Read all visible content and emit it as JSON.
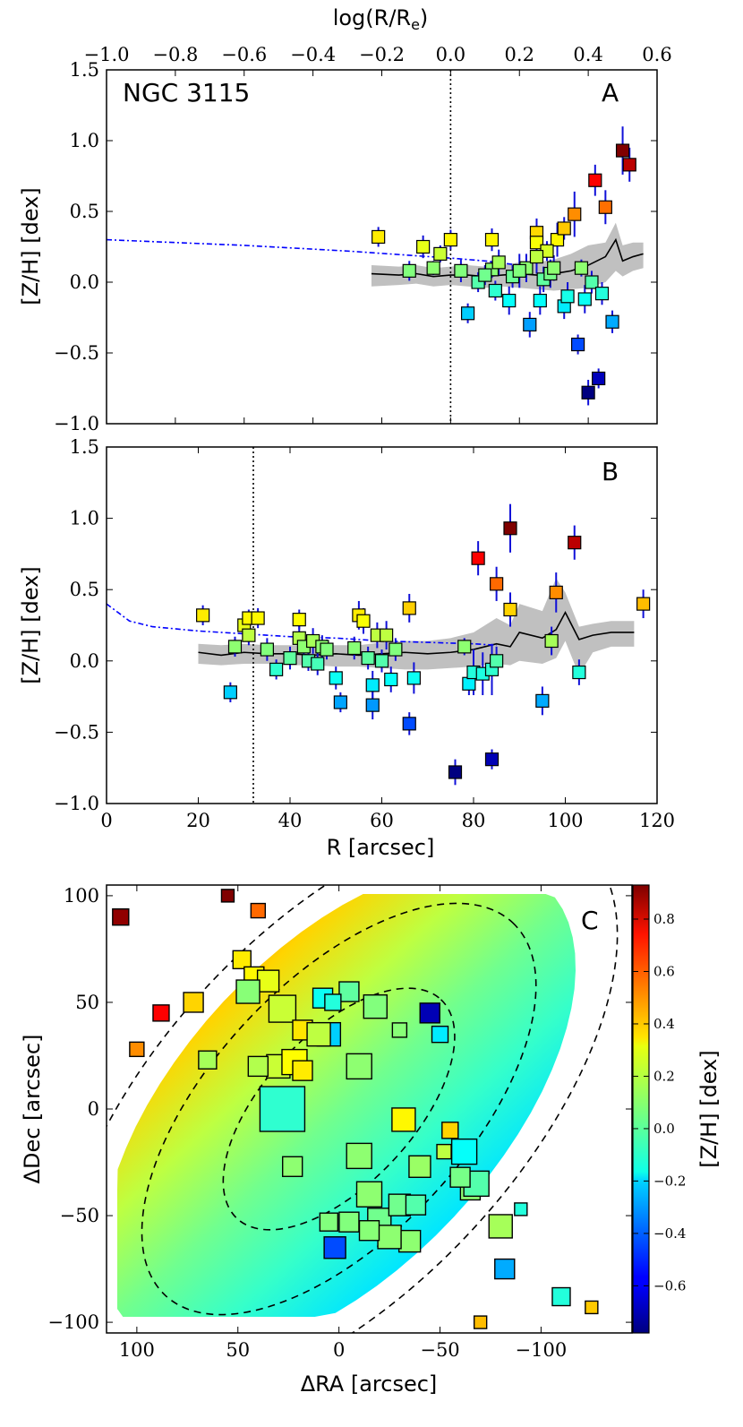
{
  "chart_data": [
    {
      "panel": "A",
      "type": "scatter",
      "title": "NGC 3115",
      "panel_label": "A",
      "xlabel": "log(R/R_e)",
      "xlabel_top_main": "log(R/R",
      "xlabel_top_sub": "e",
      "xlabel_top_close": ")",
      "ylabel": "[Z/H] [dex]",
      "xlim": [
        -1.0,
        0.6
      ],
      "ylim": [
        -1.0,
        1.5
      ],
      "xticks": [
        -1.0,
        -0.8,
        -0.6,
        -0.4,
        -0.2,
        0.0,
        0.2,
        0.4,
        0.6
      ],
      "xtick_labels": [
        "−1.0",
        "−0.8",
        "−0.6",
        "−0.4",
        "−0.2",
        "0.0",
        "0.2",
        "0.4",
        "0.6"
      ],
      "yticks": [
        -1.0,
        -0.5,
        0.0,
        0.5,
        1.0,
        1.5
      ],
      "ytick_labels": [
        "−1.0",
        "−0.5",
        "0.0",
        "0.5",
        "1.0",
        "1.5"
      ],
      "vline_x": 0.0,
      "points_x": [
        -0.21,
        0.12,
        -0.08,
        -0.03,
        0.0,
        -0.05,
        0.03,
        0.12,
        -0.12,
        0.25,
        0.31,
        0.33,
        0.25,
        0.28,
        0.38,
        0.42,
        0.45,
        0.5,
        0.52,
        0.4,
        0.43,
        0.47,
        0.13,
        0.17,
        0.18,
        0.22,
        0.25,
        0.27,
        0.29,
        0.33,
        0.34,
        0.37,
        0.39,
        0.41,
        0.08,
        0.05,
        0.1,
        0.14,
        0.2,
        0.23,
        0.26,
        0.3,
        0.36,
        0.44
      ],
      "points_y": [
        0.32,
        0.3,
        0.25,
        0.2,
        0.3,
        0.1,
        0.08,
        0.09,
        0.08,
        0.35,
        0.3,
        0.38,
        0.28,
        0.22,
        0.1,
        0.72,
        0.53,
        0.93,
        0.83,
        -0.78,
        -0.68,
        -0.28,
        -0.06,
        -0.13,
        0.04,
        0.1,
        0.18,
        0.02,
        0.06,
        -0.17,
        -0.1,
        -0.44,
        -0.12,
        0.0,
        0.0,
        -0.22,
        0.05,
        0.14,
        0.08,
        -0.3,
        -0.13,
        0.1,
        0.48,
        -0.08
      ],
      "err_y": [
        0.07,
        0.08,
        0.08,
        0.06,
        0.07,
        0.05,
        0.08,
        0.06,
        0.07,
        0.1,
        0.12,
        0.08,
        0.08,
        0.07,
        0.06,
        0.11,
        0.12,
        0.17,
        0.12,
        0.09,
        0.07,
        0.08,
        0.07,
        0.1,
        0.08,
        0.1,
        0.12,
        0.09,
        0.1,
        0.09,
        0.1,
        0.07,
        0.1,
        0.08,
        0.07,
        0.07,
        0.07,
        0.09,
        0.12,
        0.09,
        0.1,
        0.09,
        0.16,
        0.08
      ],
      "model_x": [
        -1.0,
        -0.6,
        -0.3,
        0.0,
        0.1,
        0.2
      ],
      "model_y": [
        0.3,
        0.26,
        0.22,
        0.17,
        0.15,
        0.12
      ],
      "profile_x": [
        -0.23,
        -0.15,
        -0.1,
        -0.05,
        0.0,
        0.05,
        0.1,
        0.15,
        0.2,
        0.25,
        0.3,
        0.35,
        0.4,
        0.45,
        0.48,
        0.5,
        0.53,
        0.56
      ],
      "profile_y": [
        0.06,
        0.05,
        0.06,
        0.04,
        0.05,
        0.05,
        0.04,
        0.05,
        0.06,
        0.05,
        0.06,
        0.08,
        0.12,
        0.18,
        0.3,
        0.15,
        0.18,
        0.2
      ],
      "band_upper": [
        0.12,
        0.11,
        0.12,
        0.1,
        0.11,
        0.12,
        0.11,
        0.12,
        0.14,
        0.14,
        0.16,
        0.2,
        0.26,
        0.28,
        0.42,
        0.26,
        0.28,
        0.28
      ],
      "band_lower": [
        -0.03,
        -0.02,
        -0.01,
        -0.03,
        -0.02,
        -0.03,
        -0.04,
        -0.03,
        -0.04,
        -0.05,
        -0.06,
        -0.05,
        -0.04,
        0.0,
        0.08,
        0.04,
        0.08,
        0.1
      ]
    },
    {
      "panel": "B",
      "type": "scatter",
      "panel_label": "B",
      "xlabel": "R [arcsec]",
      "ylabel": "[Z/H] [dex]",
      "xlim": [
        0,
        120
      ],
      "ylim": [
        -1.0,
        1.5
      ],
      "xticks": [
        0,
        20,
        40,
        60,
        80,
        100,
        120
      ],
      "xtick_labels": [
        "0",
        "20",
        "40",
        "60",
        "80",
        "100",
        "120"
      ],
      "yticks": [
        -1.0,
        -0.5,
        0.0,
        0.5,
        1.0,
        1.5
      ],
      "ytick_labels": [
        "−1.0",
        "−0.5",
        "0.0",
        "0.5",
        "1.0",
        "1.5"
      ],
      "vline_x": 32,
      "points_x": [
        21,
        27,
        28,
        30,
        31,
        31,
        33,
        35,
        37,
        40,
        42,
        42,
        43,
        44,
        45,
        46,
        47,
        48,
        50,
        51,
        54,
        55,
        56,
        57,
        58,
        58,
        59,
        60,
        61,
        62,
        63,
        66,
        66,
        67,
        76,
        78,
        79,
        80,
        81,
        82,
        84,
        84,
        85,
        85,
        88,
        88,
        95,
        97,
        98,
        102,
        103,
        117
      ],
      "points_y": [
        0.32,
        -0.22,
        0.1,
        0.25,
        0.18,
        0.3,
        0.3,
        0.08,
        -0.06,
        0.02,
        0.29,
        0.16,
        0.1,
        0.0,
        0.14,
        -0.02,
        0.1,
        0.08,
        -0.12,
        -0.29,
        0.09,
        0.32,
        0.28,
        0.02,
        -0.17,
        -0.31,
        0.18,
        0.0,
        0.18,
        -0.13,
        0.08,
        -0.44,
        0.37,
        -0.12,
        -0.78,
        0.1,
        -0.16,
        -0.08,
        0.72,
        -0.09,
        -0.06,
        -0.69,
        0.54,
        0.0,
        0.93,
        0.36,
        -0.28,
        0.14,
        0.48,
        0.83,
        -0.08,
        0.4
      ],
      "err_y": [
        0.07,
        0.07,
        0.07,
        0.08,
        0.07,
        0.06,
        0.07,
        0.08,
        0.07,
        0.08,
        0.07,
        0.1,
        0.08,
        0.07,
        0.09,
        0.08,
        0.08,
        0.07,
        0.08,
        0.07,
        0.08,
        0.1,
        0.09,
        0.08,
        0.1,
        0.1,
        0.09,
        0.08,
        0.1,
        0.09,
        0.08,
        0.08,
        0.1,
        0.11,
        0.09,
        0.06,
        0.08,
        0.16,
        0.12,
        0.15,
        0.18,
        0.07,
        0.12,
        0.1,
        0.17,
        0.12,
        0.1,
        0.1,
        0.14,
        0.12,
        0.09,
        0.1
      ],
      "model_x": [
        0,
        5,
        10,
        20,
        30,
        40,
        50,
        60,
        70,
        80,
        85
      ],
      "model_y": [
        0.4,
        0.28,
        0.24,
        0.21,
        0.19,
        0.17,
        0.16,
        0.14,
        0.13,
        0.12,
        0.11
      ],
      "profile_x": [
        20,
        25,
        30,
        35,
        40,
        45,
        50,
        55,
        60,
        65,
        70,
        75,
        80,
        85,
        88,
        90,
        95,
        98,
        100,
        103,
        106,
        110,
        115
      ],
      "profile_y": [
        0.06,
        0.04,
        0.06,
        0.05,
        0.05,
        0.04,
        0.05,
        0.04,
        0.05,
        0.06,
        0.05,
        0.06,
        0.08,
        0.12,
        0.1,
        0.2,
        0.16,
        0.22,
        0.34,
        0.15,
        0.18,
        0.2,
        0.2
      ],
      "band_upper": [
        0.12,
        0.11,
        0.12,
        0.11,
        0.11,
        0.11,
        0.11,
        0.11,
        0.13,
        0.14,
        0.14,
        0.16,
        0.2,
        0.3,
        0.25,
        0.4,
        0.35,
        0.58,
        0.48,
        0.24,
        0.26,
        0.28,
        0.28
      ],
      "band_lower": [
        -0.02,
        -0.03,
        -0.02,
        -0.02,
        -0.03,
        -0.03,
        -0.04,
        -0.04,
        -0.05,
        -0.06,
        -0.06,
        -0.05,
        -0.04,
        -0.02,
        -0.03,
        0.0,
        -0.02,
        0.02,
        0.14,
        -0.1,
        0.06,
        0.1,
        0.1
      ]
    },
    {
      "panel": "C",
      "type": "heatmap",
      "panel_label": "C",
      "xlabel": "ΔRA [arcsec]",
      "ylabel": "ΔDec [arcsec]",
      "colorbar_label": "[Z/H] [dex]",
      "xlim": [
        115,
        -145
      ],
      "ylim": [
        -105,
        105
      ],
      "xticks": [
        100,
        50,
        0,
        -50,
        -100
      ],
      "xtick_labels": [
        "100",
        "50",
        "0",
        "−50",
        "−100"
      ],
      "yticks": [
        100,
        50,
        0,
        -50,
        -100
      ],
      "ytick_labels": [
        "100",
        "50",
        "0",
        "−50",
        "−100"
      ],
      "clim": [
        -0.78,
        0.93
      ],
      "colorbar_ticks": [
        0.8,
        0.6,
        0.4,
        0.2,
        0.0,
        -0.2,
        -0.4,
        -0.6
      ],
      "colorbar_tick_labels": [
        "0.8",
        "0.6",
        "0.4",
        "0.2",
        "0.0",
        "−0.2",
        "−0.4",
        "−0.6"
      ],
      "map_gradient": [
        0.72,
        0.55,
        0.36,
        0.18,
        0.05,
        -0.05,
        -0.18,
        -0.35,
        -0.55
      ],
      "contours": [
        {
          "a": 74,
          "b": 37,
          "pa": 47
        },
        {
          "a": 126,
          "b": 63,
          "pa": 47
        },
        {
          "a": 178,
          "b": 89,
          "pa": 47
        }
      ],
      "points_ra": [
        108,
        55,
        40,
        100,
        88,
        72,
        65,
        48,
        42,
        35,
        30,
        28,
        22,
        18,
        8,
        5,
        -5,
        -10,
        -18,
        -30,
        -32,
        -40,
        -45,
        -50,
        -55,
        -62,
        -65,
        -70,
        -80,
        -82,
        -90,
        -110,
        -125,
        -68,
        28,
        18,
        10,
        3,
        -10,
        -15,
        -20,
        -30,
        -35,
        -25,
        5,
        -5,
        -15,
        -38,
        23,
        -52,
        -60,
        40,
        2,
        45
      ],
      "points_dec": [
        90,
        100,
        93,
        28,
        45,
        50,
        23,
        70,
        62,
        60,
        20,
        47,
        22,
        37,
        52,
        35,
        55,
        20,
        48,
        37,
        -5,
        -27,
        45,
        35,
        -10,
        -20,
        -38,
        -100,
        -55,
        -75,
        -47,
        -88,
        -93,
        -35,
        0,
        18,
        35,
        50,
        -22,
        -40,
        -52,
        -45,
        -62,
        -60,
        -53,
        -53,
        -57,
        -45,
        -27,
        -20,
        -32,
        20,
        -65,
        55
      ],
      "points_z": [
        0.9,
        0.93,
        0.54,
        0.48,
        0.72,
        0.36,
        0.14,
        0.32,
        0.3,
        0.25,
        0.2,
        0.2,
        0.29,
        0.33,
        -0.12,
        -0.22,
        0.02,
        0.1,
        0.08,
        0.09,
        0.3,
        0.12,
        -0.69,
        -0.17,
        0.36,
        -0.13,
        0.1,
        0.4,
        0.14,
        -0.28,
        -0.08,
        -0.08,
        0.38,
        0.0,
        -0.06,
        0.32,
        0.18,
        -0.08,
        0.1,
        0.1,
        0.05,
        0.05,
        0.1,
        0.1,
        0.08,
        0.08,
        0.09,
        0.0,
        0.1,
        0.18,
        0.06,
        0.16,
        -0.44,
        0.09
      ],
      "points_size": [
        9,
        7,
        8,
        8,
        9,
        11,
        10,
        10,
        11,
        12,
        13,
        15,
        14,
        11,
        11,
        13,
        11,
        14,
        13,
        8,
        13,
        12,
        11,
        9,
        9,
        14,
        11,
        7,
        13,
        11,
        7,
        10,
        7,
        14,
        25,
        11,
        13,
        9,
        14,
        14,
        13,
        12,
        12,
        13,
        10,
        11,
        11,
        11,
        11,
        8,
        11,
        11,
        12,
        13
      ]
    }
  ]
}
